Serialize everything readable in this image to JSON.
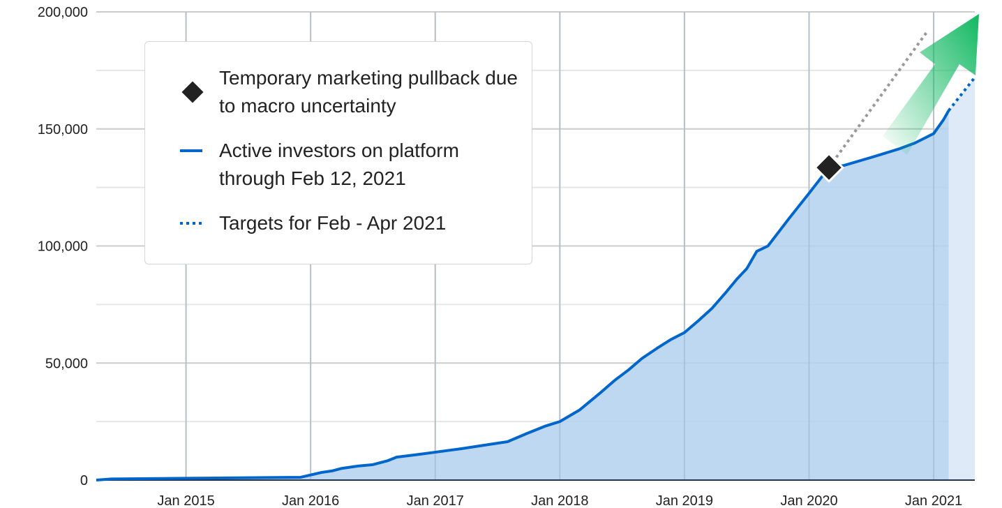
{
  "chart_data": {
    "type": "area",
    "title": "",
    "xlabel": "",
    "ylabel": "",
    "xlim": [
      2014.28,
      2021.33
    ],
    "ylim": [
      0,
      200000
    ],
    "grid": true,
    "y_ticks": [
      0,
      50000,
      100000,
      150000,
      200000
    ],
    "y_tick_labels": [
      "0",
      "50,000",
      "100,000",
      "150,000",
      "200,000"
    ],
    "x_ticks": [
      2015,
      2016,
      2017,
      2018,
      2019,
      2020,
      2021
    ],
    "x_tick_labels": [
      "Jan 2015",
      "Jan 2016",
      "Jan 2017",
      "Jan 2018",
      "Jan 2019",
      "Jan 2020",
      "Jan 2021"
    ],
    "legend_placement": "top-left",
    "series": [
      {
        "name": "Active investors on platform through Feb 12, 2021",
        "style": "solid",
        "color": "#0066cc",
        "x": [
          2014.28,
          2014.4,
          2015.92,
          2016.09,
          2016.17,
          2016.25,
          2016.38,
          2016.5,
          2016.62,
          2016.69,
          2016.87,
          2017.04,
          2017.21,
          2017.43,
          2017.58,
          2017.74,
          2017.88,
          2018.0,
          2018.16,
          2018.33,
          2018.44,
          2018.55,
          2018.66,
          2018.78,
          2018.89,
          2019.0,
          2019.11,
          2019.22,
          2019.33,
          2019.42,
          2019.5,
          2019.58,
          2019.67,
          2019.84,
          2020.0,
          2020.16,
          2020.28,
          2020.51,
          2020.73,
          2020.85,
          2021.0,
          2021.08,
          2021.12
        ],
        "y": [
          0,
          500,
          1200,
          3300,
          3900,
          5000,
          6000,
          6600,
          8300,
          9800,
          11000,
          12200,
          13400,
          15200,
          16400,
          20000,
          23000,
          25000,
          30000,
          37500,
          42600,
          47000,
          52000,
          56300,
          60000,
          63000,
          68000,
          73300,
          80000,
          85800,
          90300,
          97700,
          100000,
          111800,
          122500,
          133500,
          134400,
          138000,
          141600,
          144000,
          148000,
          154000,
          157800
        ]
      },
      {
        "name": "Targets for Feb - Apr 2021",
        "style": "dotted",
        "color": "#0066cc",
        "x": [
          2021.12,
          2021.33
        ],
        "y": [
          157800,
          172000
        ]
      },
      {
        "name": "Pre-pullback trajectory",
        "style": "dotted",
        "color": "#999999",
        "x": [
          2020.16,
          2020.94
        ],
        "y": [
          133500,
          191000
        ]
      }
    ],
    "annotations": [
      {
        "marker": "diamond",
        "x": 2020.16,
        "y": 133500,
        "label": "Temporary marketing pullback due to macro uncertainty"
      }
    ],
    "colors": {
      "line": "#0066cc",
      "fill": "#b3d1ef",
      "target_fill": "#deeaf7",
      "arrow": "#10b860",
      "diamond": "#222222"
    }
  },
  "legend": {
    "items": [
      {
        "label": "Temporary marketing pullback due to macro uncertainty"
      },
      {
        "label": "Active investors on platform through Feb 12, 2021"
      },
      {
        "label": "Targets for Feb - Apr 2021"
      }
    ]
  }
}
